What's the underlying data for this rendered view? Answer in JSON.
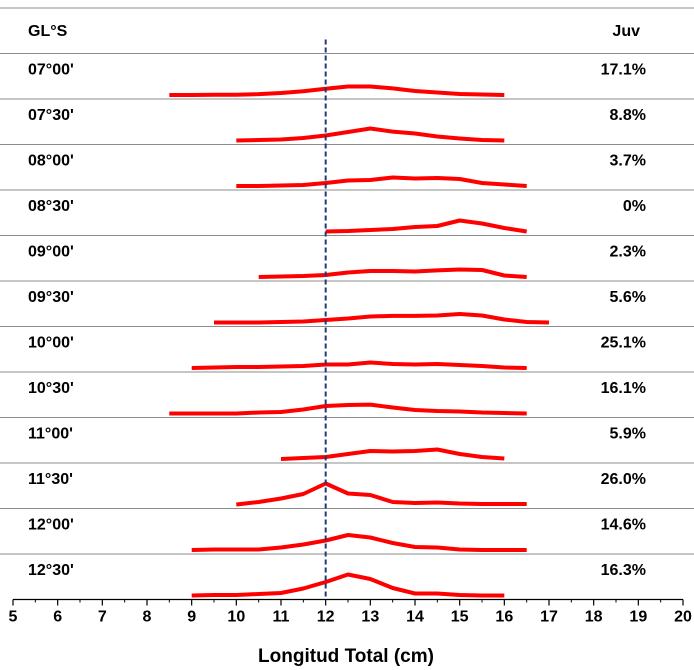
{
  "chart_data": {
    "type": "line",
    "header_left": "GL°S",
    "header_right": "Juv",
    "xlabel": "Longitud Total (cm)",
    "xlim": [
      5,
      20
    ],
    "x_ticks": [
      "5",
      "6",
      "7",
      "8",
      "9",
      "10",
      "11",
      "12",
      "13",
      "14",
      "15",
      "16",
      "17",
      "18",
      "19",
      "20"
    ],
    "reference_line_x": 12,
    "reference_line_style": "dashed",
    "line_color": "#ff0000",
    "reference_color": "#1f3a7a",
    "rows": [
      {
        "label": "07°00'",
        "juv": "17.1%",
        "x": [
          8.5,
          9,
          9.5,
          10,
          10.5,
          11,
          11.5,
          12,
          12.5,
          13,
          13.5,
          14,
          14.5,
          15,
          15.5,
          16
        ],
        "y": [
          0.0,
          0.0,
          0.03,
          0.03,
          0.09,
          0.19,
          0.36,
          0.6,
          0.82,
          0.82,
          0.63,
          0.38,
          0.24,
          0.1,
          0.05,
          0.0
        ]
      },
      {
        "label": "07°30'",
        "juv": "8.8%",
        "x": [
          10,
          10.5,
          11,
          11.5,
          12,
          12.5,
          13,
          13.5,
          14,
          14.5,
          15,
          15.5,
          16
        ],
        "y": [
          0.0,
          0.05,
          0.1,
          0.24,
          0.48,
          0.82,
          1.15,
          0.86,
          0.67,
          0.38,
          0.19,
          0.05,
          0.0
        ]
      },
      {
        "label": "08°00'",
        "juv": "3.7%",
        "x": [
          10,
          10.5,
          11,
          11.5,
          12,
          12.5,
          13,
          13.5,
          14,
          14.5,
          15,
          15.5,
          16,
          16.5
        ],
        "y": [
          0.0,
          0.0,
          0.05,
          0.1,
          0.29,
          0.53,
          0.58,
          0.82,
          0.72,
          0.77,
          0.67,
          0.29,
          0.14,
          0.0
        ]
      },
      {
        "label": "08°30'",
        "juv": "0%",
        "x": [
          12,
          12.5,
          13,
          13.5,
          14,
          14.5,
          15,
          15.5,
          16,
          16.5
        ],
        "y": [
          0.0,
          0.05,
          0.14,
          0.24,
          0.43,
          0.53,
          1.06,
          0.77,
          0.34,
          0.0
        ]
      },
      {
        "label": "09°00'",
        "juv": "2.3%",
        "x": [
          10.5,
          11,
          11.5,
          12,
          12.5,
          13,
          13.5,
          14,
          14.5,
          15,
          15.5,
          16,
          16.5
        ],
        "y": [
          0.0,
          0.05,
          0.1,
          0.19,
          0.43,
          0.58,
          0.58,
          0.53,
          0.63,
          0.72,
          0.67,
          0.14,
          0.0
        ]
      },
      {
        "label": "09°30'",
        "juv": "5.6%",
        "x": [
          9.5,
          10,
          10.5,
          11,
          11.5,
          12,
          12.5,
          13,
          13.5,
          14,
          14.5,
          15,
          15.5,
          16,
          16.5,
          17
        ],
        "y": [
          0.0,
          0.0,
          0.0,
          0.05,
          0.1,
          0.24,
          0.38,
          0.58,
          0.63,
          0.63,
          0.67,
          0.82,
          0.67,
          0.29,
          0.05,
          0.0
        ]
      },
      {
        "label": "10°00'",
        "juv": "25.1%",
        "x": [
          9,
          9.5,
          10,
          10.5,
          11,
          11.5,
          12,
          12.5,
          13,
          13.5,
          14,
          14.5,
          15,
          15.5,
          16,
          16.5
        ],
        "y": [
          0.0,
          0.05,
          0.1,
          0.1,
          0.14,
          0.19,
          0.34,
          0.34,
          0.53,
          0.38,
          0.34,
          0.38,
          0.29,
          0.19,
          0.05,
          0.0
        ]
      },
      {
        "label": "10°30'",
        "juv": "16.1%",
        "x": [
          8.5,
          9,
          9.5,
          10,
          10.5,
          11,
          11.5,
          12,
          12.5,
          13,
          13.5,
          14,
          14.5,
          15,
          15.5,
          16,
          16.5
        ],
        "y": [
          0.0,
          0.0,
          0.0,
          0.0,
          0.1,
          0.14,
          0.38,
          0.72,
          0.82,
          0.86,
          0.58,
          0.34,
          0.24,
          0.19,
          0.1,
          0.05,
          0.0
        ]
      },
      {
        "label": "11°00'",
        "juv": "5.9%",
        "x": [
          11,
          11.5,
          12,
          12.5,
          13,
          13.5,
          14,
          14.5,
          15,
          15.5,
          16
        ],
        "y": [
          0.0,
          0.1,
          0.19,
          0.48,
          0.77,
          0.72,
          0.77,
          0.91,
          0.48,
          0.19,
          0.05
        ]
      },
      {
        "label": "11°30'",
        "juv": "26.0%",
        "x": [
          10,
          10.5,
          11,
          11.5,
          12,
          12.5,
          13,
          13.5,
          14,
          14.5,
          15,
          15.5,
          16,
          16.5
        ],
        "y": [
          0.0,
          0.24,
          0.58,
          1.01,
          2.02,
          1.06,
          0.91,
          0.24,
          0.14,
          0.19,
          0.1,
          0.05,
          0.05,
          0.05
        ]
      },
      {
        "label": "12°00'",
        "juv": "14.6%",
        "x": [
          9,
          9.5,
          10,
          10.5,
          11,
          11.5,
          12,
          12.5,
          13,
          13.5,
          14,
          14.5,
          15,
          15.5,
          16,
          16.5
        ],
        "y": [
          0.0,
          0.05,
          0.05,
          0.05,
          0.24,
          0.53,
          0.91,
          1.44,
          1.2,
          0.67,
          0.29,
          0.24,
          0.05,
          0.0,
          0.0,
          0.0
        ]
      },
      {
        "label": "12°30'",
        "juv": "16.3%",
        "x": [
          9,
          9.5,
          10,
          10.5,
          11,
          11.5,
          12,
          12.5,
          13,
          13.5,
          14,
          14.5,
          15,
          15.5,
          16
        ],
        "y": [
          0.0,
          0.05,
          0.05,
          0.14,
          0.24,
          0.67,
          1.3,
          2.02,
          1.59,
          0.72,
          0.19,
          0.19,
          0.05,
          0.0,
          0.0
        ]
      }
    ]
  }
}
